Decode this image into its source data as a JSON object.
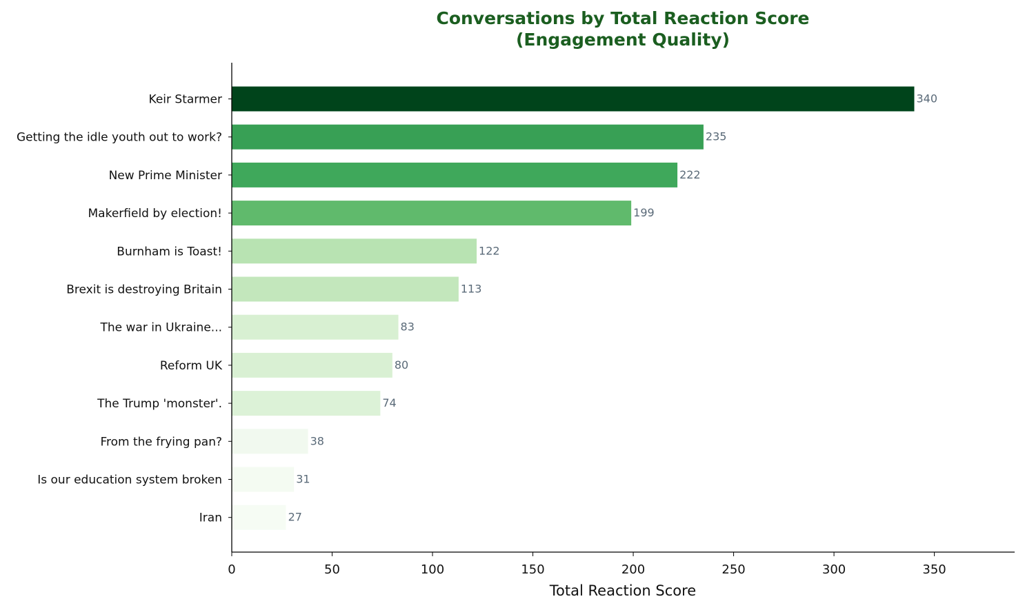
{
  "chart_data": {
    "type": "bar",
    "orientation": "horizontal",
    "title": "Conversations by Total Reaction Score",
    "subtitle": "(Engagement Quality)",
    "xlabel": "Total Reaction Score",
    "ylabel": "",
    "xlim": [
      0,
      390
    ],
    "xticks": [
      0,
      50,
      100,
      150,
      200,
      250,
      300,
      350
    ],
    "grid": false,
    "categories": [
      "Keir Starmer",
      "Getting the idle youth out to work?",
      "New Prime Minister",
      "Makerfield by election!",
      "Burnham is Toast!",
      "Brexit is destroying Britain",
      "The war in Ukraine...",
      "Reform UK",
      "The Trump 'monster'.",
      "From the frying pan?",
      "Is our education system broken",
      "Iran"
    ],
    "values": [
      340,
      235,
      222,
      199,
      122,
      113,
      83,
      80,
      74,
      38,
      31,
      27
    ],
    "bar_colors": [
      "#00441b",
      "#38a055",
      "#3fa85b",
      "#60ba6c",
      "#b8e3b2",
      "#c3e7bc",
      "#d8f0d2",
      "#d9f0d3",
      "#dcf2d7",
      "#f1f9ef",
      "#f4fbf2",
      "#f6fcf4"
    ],
    "title_color": "#1b5e20",
    "value_label_color": "#5a6a78"
  }
}
